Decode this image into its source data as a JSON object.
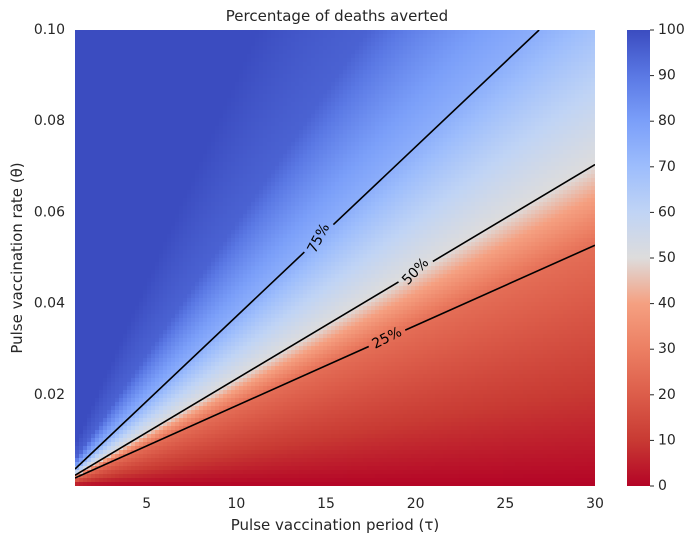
{
  "chart_data": {
    "type": "heatmap",
    "title": "Percentage of deaths averted",
    "xlabel": "Pulse vaccination period (τ)",
    "ylabel": "Pulse vaccination rate (θ)",
    "xlim": [
      1,
      30
    ],
    "ylim": [
      0,
      0.1
    ],
    "x_ticks": [
      5,
      10,
      15,
      20,
      25,
      30
    ],
    "x_tick_labels": [
      "5",
      "10",
      "15",
      "20",
      "25",
      "30"
    ],
    "y_ticks": [
      0.02,
      0.04,
      0.06,
      0.08,
      0.1
    ],
    "y_tick_labels": [
      "0.02",
      "0.04",
      "0.06",
      "0.08",
      "0.10"
    ],
    "colorbar": {
      "range": [
        0,
        100
      ],
      "ticks": [
        0,
        10,
        20,
        30,
        40,
        50,
        60,
        70,
        80,
        90,
        100
      ],
      "tick_labels": [
        "0",
        "10",
        "20",
        "30",
        "40",
        "50",
        "60",
        "70",
        "80",
        "90",
        "100"
      ],
      "colormap": "coolwarm_r",
      "low_color": "#b40426",
      "mid_color": "#dddcdc",
      "high_color": "#3b4cc0"
    },
    "contours": [
      {
        "level": 75,
        "label": "75%",
        "slope": 0.00372,
        "label_x": 14.6,
        "label_angle": -62
      },
      {
        "level": 50,
        "label": "50%",
        "slope": 0.00235,
        "label_x": 20.0,
        "label_angle": -46
      },
      {
        "level": 25,
        "label": "25%",
        "slope": 0.00176,
        "label_x": 18.4,
        "label_angle": -27
      }
    ]
  }
}
